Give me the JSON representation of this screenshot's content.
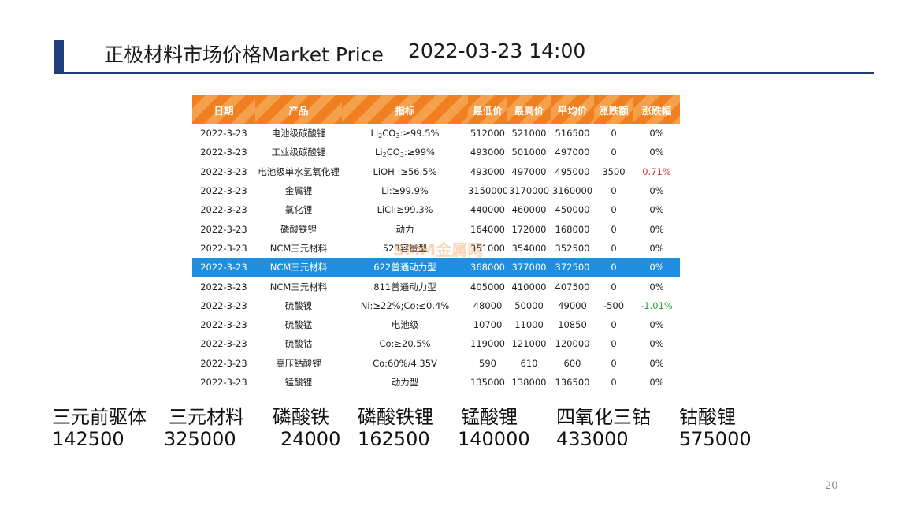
{
  "title": {
    "text": "正极材料市场价格Market Price",
    "datetime": "2022-03-23 14:00"
  },
  "table": {
    "headers": [
      "日期",
      "产品",
      "指标",
      "最低价",
      "最高价",
      "平均价",
      "涨跌额",
      "涨跌幅"
    ],
    "rows": [
      {
        "date": "2022-3-23",
        "product": "电池级碳酸锂",
        "spec_pre": "Li",
        "spec_sub": "2",
        "spec_post": "CO",
        "spec_sub2": "3",
        "spec_tail": ":≥99.5%",
        "low": "512000",
        "high": "521000",
        "avg": "516500",
        "chg": "0",
        "pct": "0%"
      },
      {
        "date": "2022-3-23",
        "product": "工业级碳酸锂",
        "spec_pre": "Li",
        "spec_sub": "2",
        "spec_post": "CO",
        "spec_sub2": "3",
        "spec_tail": ":≥99%",
        "low": "493000",
        "high": "501000",
        "avg": "497000",
        "chg": "0",
        "pct": "0%"
      },
      {
        "date": "2022-3-23",
        "product": "电池级单水氢氧化锂",
        "spec": "LiOH :≥56.5%",
        "low": "493000",
        "high": "497000",
        "avg": "495000",
        "chg": "3500",
        "pct": "0.71%"
      },
      {
        "date": "2022-3-23",
        "product": "金属锂",
        "spec": "Li:≥99.9%",
        "low": "3150000",
        "high": "3170000",
        "avg": "3160000",
        "chg": "0",
        "pct": "0%"
      },
      {
        "date": "2022-3-23",
        "product": "氯化锂",
        "spec": "LiCl:≥99.3%",
        "low": "440000",
        "high": "460000",
        "avg": "450000",
        "chg": "0",
        "pct": "0%"
      },
      {
        "date": "2022-3-23",
        "product": "磷酸铁锂",
        "spec": "动力",
        "low": "164000",
        "high": "172000",
        "avg": "168000",
        "chg": "0",
        "pct": "0%"
      },
      {
        "date": "2022-3-23",
        "product": "NCM三元材料",
        "spec": "523容量型",
        "low": "351000",
        "high": "354000",
        "avg": "352500",
        "chg": "0",
        "pct": "0%"
      },
      {
        "date": "2022-3-23",
        "product": "NCM三元材料",
        "spec": "622普通动力型",
        "low": "368000",
        "high": "377000",
        "avg": "372500",
        "chg": "0",
        "pct": "0%"
      },
      {
        "date": "2022-3-23",
        "product": "NCM三元材料",
        "spec": "811普通动力型",
        "low": "405000",
        "high": "410000",
        "avg": "407500",
        "chg": "0",
        "pct": "0%"
      },
      {
        "date": "2022-3-23",
        "product": "硫酸镍",
        "spec": "Ni:≥22%;Co:≤0.4%",
        "low": "48000",
        "high": "50000",
        "avg": "49000",
        "chg": "-500",
        "pct": "-1.01%"
      },
      {
        "date": "2022-3-23",
        "product": "硫酸锰",
        "spec": "电池级",
        "low": "10700",
        "high": "11000",
        "avg": "10850",
        "chg": "0",
        "pct": "0%"
      },
      {
        "date": "2022-3-23",
        "product": "硫酸钴",
        "spec": "Co:≥20.5%",
        "low": "119000",
        "high": "121000",
        "avg": "120000",
        "chg": "0",
        "pct": "0%"
      },
      {
        "date": "2022-3-23",
        "product": "高压钴酸锂",
        "spec": "Co:60%/4.35V",
        "low": "590",
        "high": "610",
        "avg": "600",
        "chg": "0",
        "pct": "0%"
      },
      {
        "date": "2022-3-23",
        "product": "锰酸锂",
        "spec": "动力型",
        "low": "135000",
        "high": "138000",
        "avg": "136500",
        "chg": "0",
        "pct": "0%"
      }
    ]
  },
  "watermark": "SMM金属网",
  "summary": [
    {
      "label": "三元前驱体",
      "value": "142500"
    },
    {
      "label": "三元材料",
      "value": "325000"
    },
    {
      "label": "磷酸铁",
      "value": "24000"
    },
    {
      "label": "磷酸铁锂",
      "value": "162500"
    },
    {
      "label": "锰酸锂",
      "value": "140000"
    },
    {
      "label": "四氧化三钴",
      "value": "433000"
    },
    {
      "label": "钴酸锂",
      "value": "575000"
    }
  ],
  "page_number": "20",
  "colors": {
    "header_orange": "#f07f22",
    "selected_row": "#1e8fe0",
    "title_blue": "#1f3d7a",
    "up": "#d0333a",
    "down": "#2a9d3a"
  }
}
